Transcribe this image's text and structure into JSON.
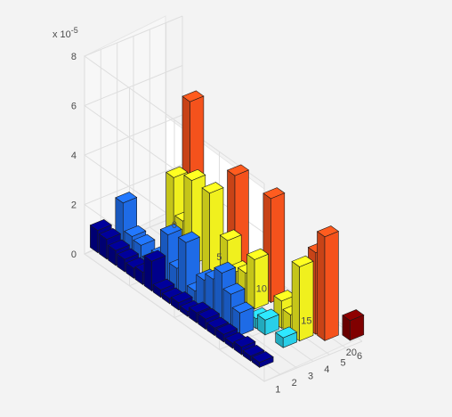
{
  "chart_data": {
    "type": "bar3d",
    "title": "",
    "xlabel": "",
    "ylabel": "",
    "zlabel": "",
    "z_exponent_label": "x 10",
    "z_exponent_power": "-5",
    "z_ticks": [
      "0",
      "2",
      "4",
      "6",
      "8"
    ],
    "x_ticks": [
      "0",
      "5",
      "10",
      "15",
      "20"
    ],
    "y_ticks": [
      "1",
      "2",
      "3",
      "4",
      "5",
      "6"
    ],
    "zlim": [
      0,
      8
    ],
    "xlim": [
      0,
      20
    ],
    "ylim": [
      0,
      6
    ],
    "grid": true,
    "colormap": [
      "#00008b",
      "#1e6be6",
      "#29cfe8",
      "#f0f01e",
      "#f4521c",
      "#800000"
    ],
    "series": [
      {
        "y": 1,
        "values": [
          0.9,
          0.8,
          0.6,
          0.5,
          0.4,
          0.5,
          1.2,
          0.3,
          0.2,
          0.3,
          0.2,
          0.4,
          0.4,
          0.3,
          0.3,
          0.2,
          0.3,
          0.2,
          0.2,
          0,
          0
        ]
      },
      {
        "y": 2,
        "values": [
          0,
          2.0,
          0.9,
          0.8,
          0.4,
          0.9,
          2.0,
          0.9,
          2.2,
          0.5,
          1.2,
          1.5,
          2.0,
          1.4,
          0.9,
          0,
          0,
          0,
          0,
          0,
          0
        ]
      },
      {
        "y": 3,
        "values": [
          0,
          0,
          0,
          0,
          0,
          0,
          0,
          0,
          0,
          0.4,
          0,
          0.2,
          0,
          0,
          0.4,
          0.6,
          0,
          0.4,
          0,
          0,
          0
        ]
      },
      {
        "y": 4,
        "values": [
          0,
          0,
          0,
          3.0,
          1.5,
          3.4,
          0,
          3.4,
          0,
          2.0,
          1.0,
          1.2,
          2.0,
          0,
          0,
          1.1,
          0.8,
          3.0,
          0,
          0,
          0
        ]
      },
      {
        "y": 5,
        "values": [
          0,
          0,
          0,
          5.8,
          0,
          0,
          0,
          0,
          4.1,
          0,
          0,
          0,
          4.2,
          0,
          0,
          0,
          0,
          3.3,
          4.2,
          0,
          0
        ]
      },
      {
        "y": 6,
        "values": [
          0,
          0,
          0,
          0,
          0,
          0,
          0,
          0,
          0,
          0,
          0,
          0,
          0,
          0,
          0,
          0,
          0,
          0,
          0,
          0.8,
          0
        ]
      }
    ]
  }
}
